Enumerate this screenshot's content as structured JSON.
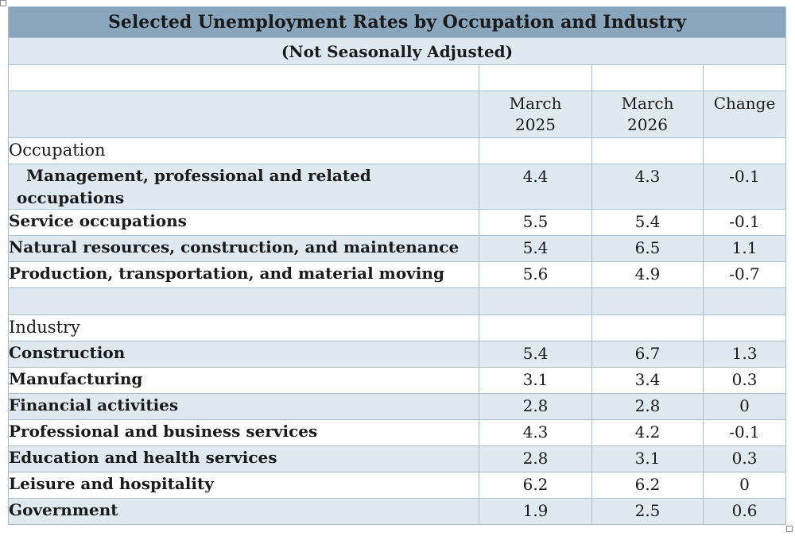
{
  "title": "Selected Unemployment Rates by Occupation and Industry",
  "subtitle": "(Not Seasonally Adjusted)",
  "columns": [
    "",
    "March\n2025",
    "March\n2026",
    "Change"
  ],
  "occupation": {
    "label": "Occupation",
    "rows": [
      {
        "name": "Management, professional and related occupations",
        "v2025": "4.4",
        "v2026": "4.3",
        "change": "-0.1"
      },
      {
        "name": "Service occupations",
        "v2025": "5.5",
        "v2026": "5.4",
        "change": "-0.1"
      },
      {
        "name": "Natural resources, construction, and maintenance",
        "v2025": "5.4",
        "v2026": "6.5",
        "change": "1.1"
      },
      {
        "name": "Production, transportation, and material moving",
        "v2025": "5.6",
        "v2026": "4.9",
        "change": "-0.7"
      }
    ]
  },
  "industry": {
    "label": "Industry",
    "rows": [
      {
        "name": "Construction",
        "v2025": "5.4",
        "v2026": "6.7",
        "change": "1.3"
      },
      {
        "name": "Manufacturing",
        "v2025": "3.1",
        "v2026": "3.4",
        "change": "0.3"
      },
      {
        "name": "Financial activities",
        "v2025": "2.8",
        "v2026": "2.8",
        "change": "0"
      },
      {
        "name": "Professional and business services",
        "v2025": "4.3",
        "v2026": "4.2",
        "change": "-0.1"
      },
      {
        "name": "Education and health services",
        "v2025": "2.8",
        "v2026": "3.1",
        "change": "0.3"
      },
      {
        "name": "Leisure and hospitality",
        "v2025": "6.2",
        "v2026": "6.2",
        "change": "0"
      },
      {
        "name": "Government",
        "v2025": "1.9",
        "v2026": "2.5",
        "change": "0.6"
      }
    ]
  }
}
